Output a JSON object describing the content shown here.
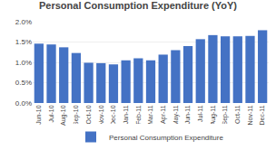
{
  "chart_data": {
    "type": "bar",
    "title": "Personal Consumption Expenditure (YoY)",
    "categories": [
      "Jun-10",
      "Jul-10",
      "Aug-10",
      "Sep-10",
      "Oct-10",
      "Nov-10",
      "Dec-10",
      "Jan-11",
      "Feb-11",
      "Mar-11",
      "Apr-11",
      "May-11",
      "Jun-11",
      "Jul-11",
      "Aug-11",
      "Sep-11",
      "Oct-11",
      "Nov-11",
      "Dec-11"
    ],
    "series": [
      {
        "name": "Personal Consumption Expenditure",
        "color": "#4472C4",
        "values": [
          1.46,
          1.44,
          1.37,
          1.23,
          0.99,
          0.98,
          0.95,
          1.05,
          1.1,
          1.05,
          1.19,
          1.3,
          1.4,
          1.57,
          1.67,
          1.64,
          1.64,
          1.65,
          1.79
        ]
      }
    ],
    "ylim": [
      0,
      2.0
    ],
    "yticks": [
      {
        "value": 0.0,
        "label": "0.0%"
      },
      {
        "value": 0.5,
        "label": "0.5%"
      },
      {
        "value": 1.0,
        "label": "1.0%"
      },
      {
        "value": 1.5,
        "label": "1.5%"
      },
      {
        "value": 2.0,
        "label": "2.0%"
      }
    ],
    "grid": true,
    "legend": "bottom"
  }
}
